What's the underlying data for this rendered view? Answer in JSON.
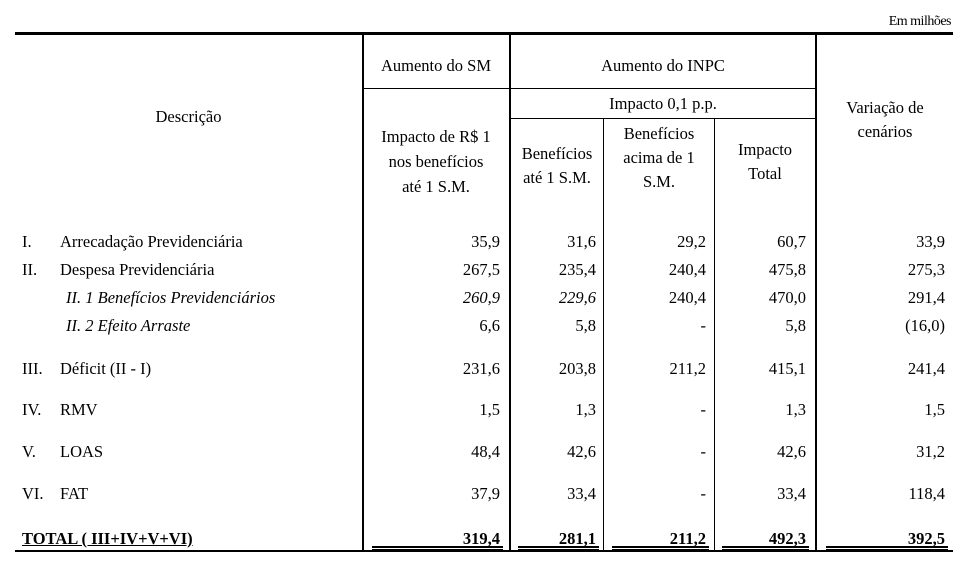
{
  "unit_note": "Em milhões",
  "header": {
    "descricao": "Descrição",
    "aumento_sm": "Aumento do SM",
    "aumento_inpc": "Aumento do INPC",
    "impacto_r1": [
      "Impacto de R$ 1",
      "nos benefícios",
      "até 1 S.M."
    ],
    "impacto_pp": "Impacto 0,1 p.p.",
    "beneficios_ate": [
      "Benefícios",
      "até 1 S.M."
    ],
    "beneficios_acima": [
      "Benefícios",
      "acima de 1",
      "S.M."
    ],
    "impacto_total": [
      "Impacto",
      "Total"
    ],
    "variacao": [
      "Variação de",
      "cenários"
    ]
  },
  "rows": [
    {
      "num": "I.",
      "label": "Arrecadação Previdenciária",
      "values": [
        "35,9",
        "31,6",
        "29,2",
        "60,7",
        "33,9"
      ],
      "style": "normal"
    },
    {
      "num": "II.",
      "label": "Despesa Previdenciária",
      "values": [
        "267,5",
        "235,4",
        "240,4",
        "475,8",
        "275,3"
      ],
      "style": "normal"
    },
    {
      "num": "",
      "label": "II. 1 Benefícios Previdenciários",
      "values": [
        "260,9",
        "229,6",
        "240,4",
        "470,0",
        "291,4"
      ],
      "style": "italic"
    },
    {
      "num": "",
      "label": "II. 2 Efeito Arraste",
      "values": [
        "6,6",
        "5,8",
        "-",
        "5,8",
        "(16,0)"
      ],
      "style": "italic"
    },
    {
      "num": "III.",
      "label": "Déficit (II - I)",
      "values": [
        "231,6",
        "203,8",
        "211,2",
        "415,1",
        "241,4"
      ],
      "style": "normal"
    },
    {
      "num": "IV.",
      "label": "RMV",
      "values": [
        "1,5",
        "1,3",
        "-",
        "1,3",
        "1,5"
      ],
      "style": "normal"
    },
    {
      "num": "V.",
      "label": "LOAS",
      "values": [
        "48,4",
        "42,6",
        "-",
        "42,6",
        "31,2"
      ],
      "style": "normal"
    },
    {
      "num": "VI.",
      "label": "FAT",
      "values": [
        "37,9",
        "33,4",
        "-",
        "33,4",
        "118,4"
      ],
      "style": "normal"
    }
  ],
  "total": {
    "label": "TOTAL ( III+IV+V+VI)",
    "values": [
      "319,4",
      "281,1",
      "211,2",
      "492,3",
      "392,5"
    ]
  }
}
